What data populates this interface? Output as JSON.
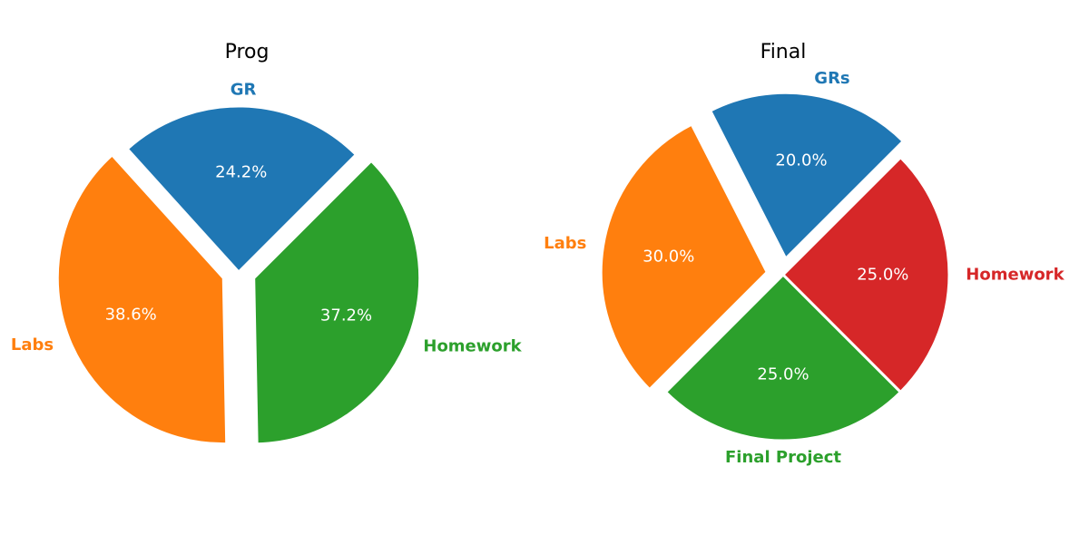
{
  "chart_data": [
    {
      "type": "pie",
      "title": "Prog",
      "slices": [
        {
          "label": "GR",
          "value": 24.2,
          "percent_label": "24.2%",
          "color": "#1f77b4",
          "exploded": false
        },
        {
          "label": "Labs",
          "value": 38.6,
          "percent_label": "38.6%",
          "color": "#ff7f0e",
          "exploded": true
        },
        {
          "label": "Homework",
          "value": 37.2,
          "percent_label": "37.2%",
          "color": "#2ca02c",
          "exploded": true
        }
      ]
    },
    {
      "type": "pie",
      "title": "Final",
      "slices": [
        {
          "label": "GRs",
          "value": 20.0,
          "percent_label": "20.0%",
          "color": "#1f77b4",
          "exploded": true
        },
        {
          "label": "Labs",
          "value": 30.0,
          "percent_label": "30.0%",
          "color": "#ff7f0e",
          "exploded": true
        },
        {
          "label": "Final Project",
          "value": 25.0,
          "percent_label": "25.0%",
          "color": "#2ca02c",
          "exploded": false
        },
        {
          "label": "Homework",
          "value": 25.0,
          "percent_label": "25.0%",
          "color": "#d62728",
          "exploded": false
        }
      ]
    }
  ]
}
